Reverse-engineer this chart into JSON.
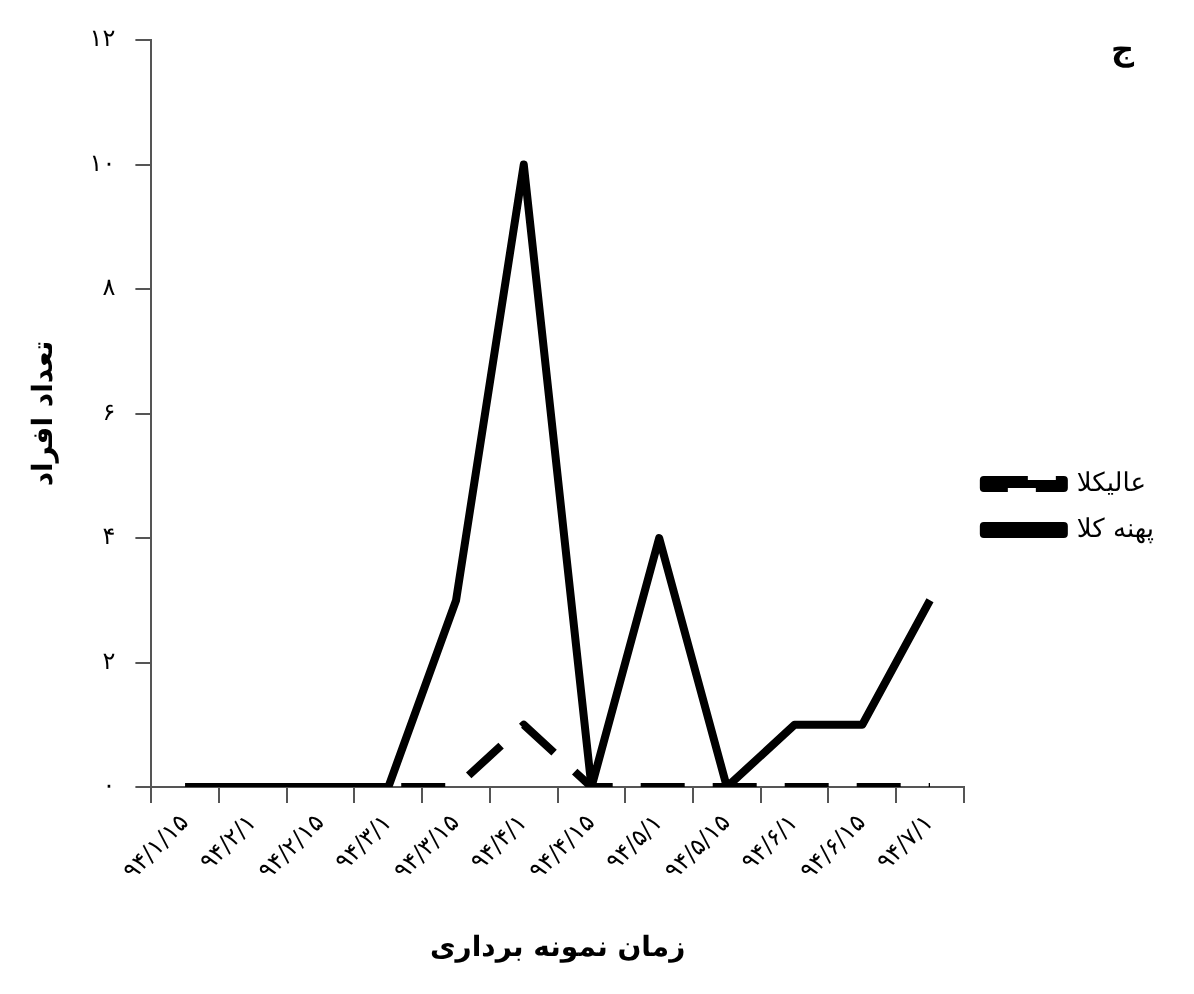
{
  "chart_data": {
    "type": "line",
    "xlabel": "زمان نمونه برداری",
    "ylabel": "تعداد افراد",
    "annotations": [
      "ج"
    ],
    "categories": [
      "۹۴/۱/۱۵",
      "۹۴/۲/۱",
      "۹۴/۲/۱۵",
      "۹۴/۳/۱",
      "۹۴/۳/۱۵",
      "۹۴/۴/۱",
      "۹۴/۴/۱۵",
      "۹۴/۵/۱",
      "۹۴/۵/۱۵",
      "۹۴/۶/۱",
      "۹۴/۶/۱۵",
      "۹۴/۷/۱"
    ],
    "series": [
      {
        "name": "عالیکلا",
        "color": "#000000",
        "line_style": "dashed",
        "values": [
          0,
          0,
          0,
          0,
          0,
          1,
          0,
          0,
          0,
          0,
          0,
          0
        ]
      },
      {
        "name": "پهنه کلا",
        "color": "#000000",
        "line_style": "solid",
        "values": [
          0,
          0,
          0,
          0,
          3,
          10,
          0,
          4,
          0,
          1,
          1,
          3
        ]
      }
    ],
    "ylim": [
      0,
      12
    ],
    "yticks": [
      {
        "value": 0,
        "label": "۰"
      },
      {
        "value": 2,
        "label": "۲"
      },
      {
        "value": 4,
        "label": "۴"
      },
      {
        "value": 6,
        "label": "۶"
      },
      {
        "value": 8,
        "label": "۸"
      },
      {
        "value": 10,
        "label": "۱۰"
      },
      {
        "value": 12,
        "label": "۱۲"
      }
    ],
    "grid": false,
    "legend": "right",
    "marker": "none"
  }
}
